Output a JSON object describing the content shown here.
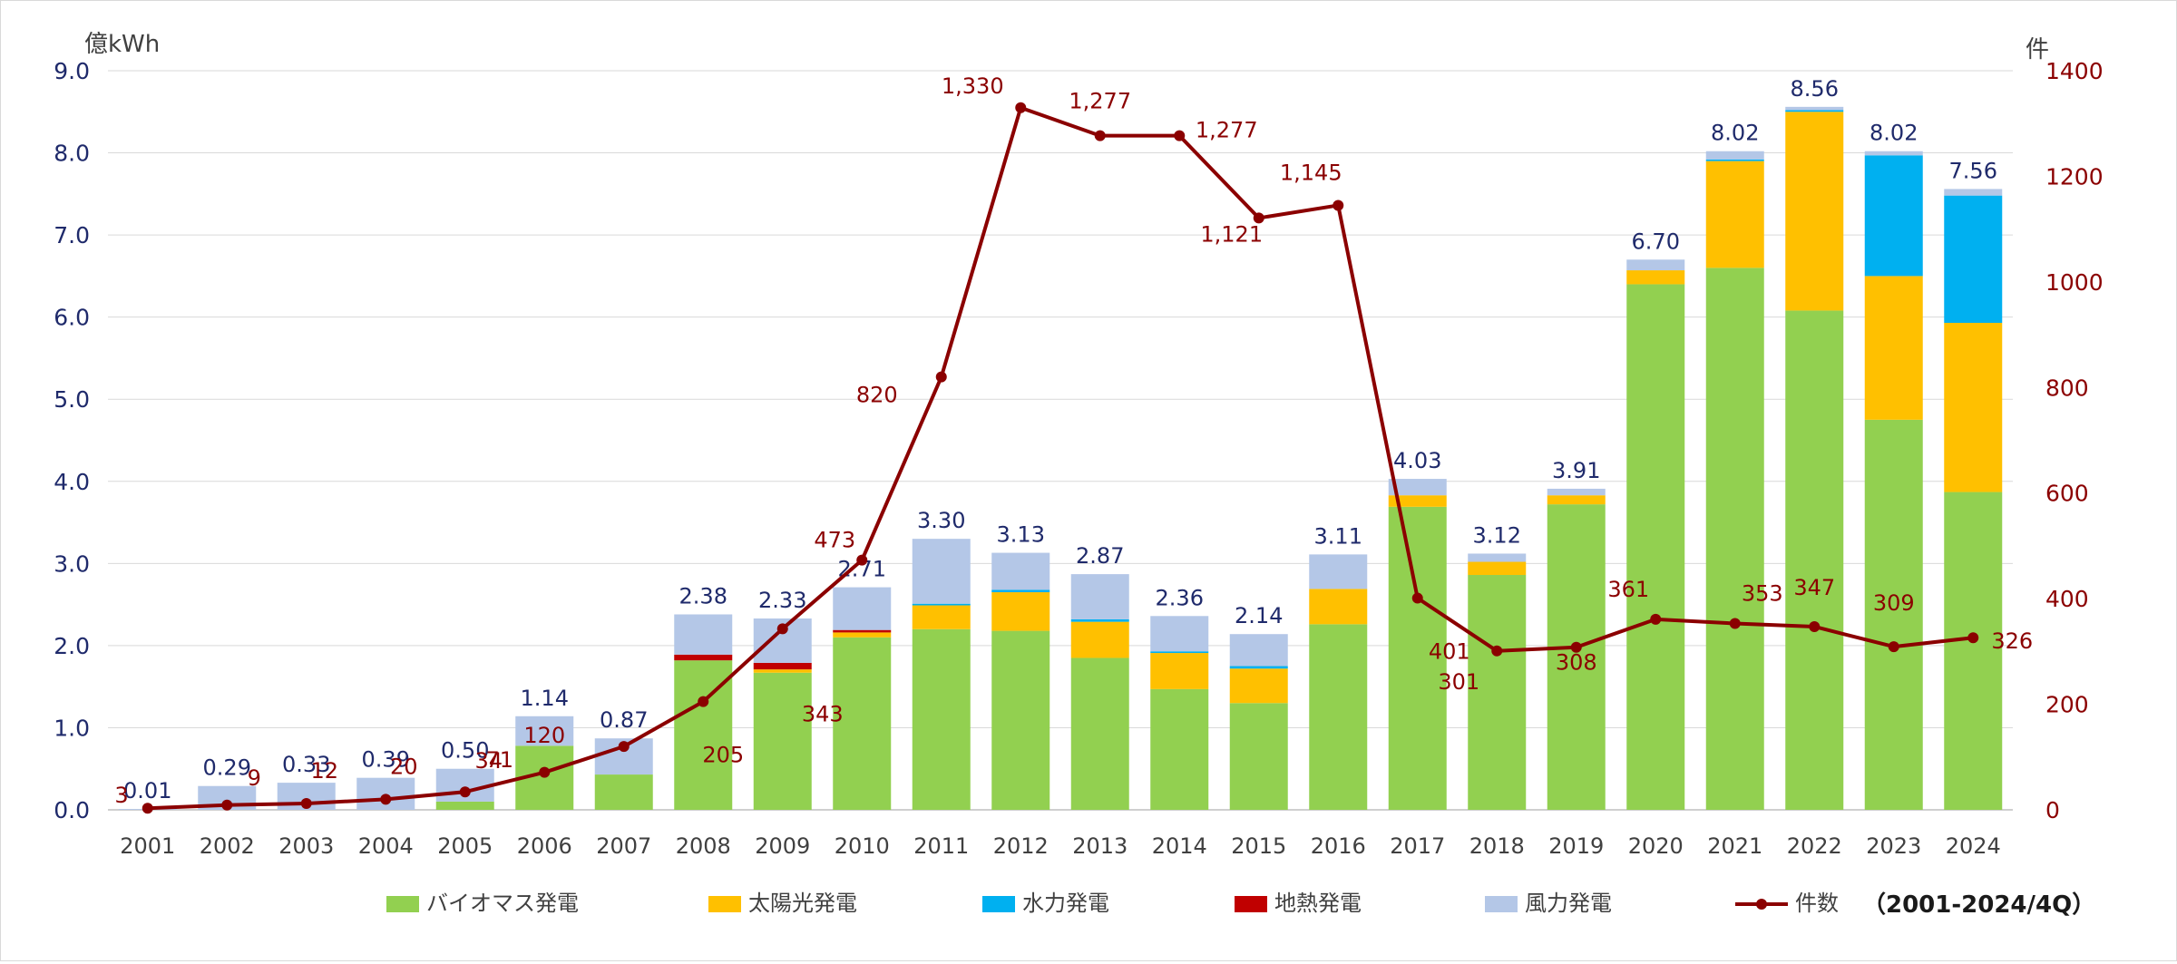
{
  "chart_data": {
    "type": "bar+line",
    "categories": [
      "2001",
      "2002",
      "2003",
      "2004",
      "2005",
      "2006",
      "2007",
      "2008",
      "2009",
      "2010",
      "2011",
      "2012",
      "2013",
      "2014",
      "2015",
      "2016",
      "2017",
      "2018",
      "2019",
      "2020",
      "2021",
      "2022",
      "2023",
      "2024"
    ],
    "y_left": {
      "unit": "億kWh",
      "range": [
        0,
        9
      ],
      "ticks": [
        "0.0",
        "1.0",
        "2.0",
        "3.0",
        "4.0",
        "5.0",
        "6.0",
        "7.0",
        "8.0",
        "9.0"
      ]
    },
    "y_right": {
      "unit": "件",
      "range": [
        0,
        1400
      ],
      "ticks": [
        "0",
        "200",
        "400",
        "600",
        "800",
        "1000",
        "1200",
        "1400"
      ]
    },
    "grid": true,
    "legend_position": "bottom",
    "series": [
      {
        "name": "バイオマス発電",
        "type": "bar",
        "axis": "left",
        "color": "#92d050",
        "values": [
          0,
          0,
          0,
          0,
          0.1,
          0.78,
          0.43,
          1.82,
          1.67,
          2.1,
          2.2,
          2.18,
          1.85,
          1.47,
          1.3,
          2.26,
          3.69,
          2.86,
          3.72,
          6.4,
          6.6,
          6.08,
          4.75,
          3.87
        ]
      },
      {
        "name": "太陽光発電",
        "type": "bar",
        "axis": "left",
        "color": "#ffc000",
        "values": [
          0,
          0,
          0,
          0,
          0,
          0,
          0,
          0,
          0.04,
          0.06,
          0.29,
          0.47,
          0.44,
          0.44,
          0.42,
          0.43,
          0.14,
          0.16,
          0.11,
          0.17,
          1.3,
          2.42,
          1.75,
          2.06
        ]
      },
      {
        "name": "水力発電",
        "type": "bar",
        "axis": "left",
        "color": "#00b0f0",
        "values": [
          0,
          0,
          0,
          0,
          0,
          0,
          0,
          0,
          0,
          0,
          0.02,
          0.03,
          0.03,
          0.02,
          0.03,
          0,
          0,
          0,
          0,
          0,
          0.02,
          0.02,
          1.47,
          1.55
        ]
      },
      {
        "name": "地熱発電",
        "type": "bar",
        "axis": "left",
        "color": "#c00000",
        "values": [
          0,
          0,
          0,
          0,
          0,
          0,
          0,
          0.07,
          0.08,
          0.03,
          0,
          0,
          0,
          0,
          0,
          0,
          0,
          0,
          0,
          0,
          0,
          0,
          0,
          0
        ]
      },
      {
        "name": "風力発電",
        "type": "bar",
        "axis": "left",
        "color": "#b4c7e7",
        "values": [
          0.01,
          0.29,
          0.33,
          0.39,
          0.4,
          0.36,
          0.44,
          0.49,
          0.54,
          0.52,
          0.79,
          0.45,
          0.55,
          0.43,
          0.39,
          0.42,
          0.2,
          0.1,
          0.08,
          0.13,
          0.1,
          0.04,
          0.05,
          0.08
        ]
      },
      {
        "name": "件数",
        "type": "line",
        "axis": "right",
        "color": "#8b0000",
        "values": [
          3,
          9,
          12,
          20,
          34,
          71,
          120,
          205,
          343,
          473,
          820,
          1330,
          1277,
          1277,
          1121,
          1145,
          401,
          301,
          308,
          361,
          353,
          347,
          309,
          326
        ]
      }
    ],
    "bar_total_labels": [
      "0.01",
      "0.29",
      "0.33",
      "0.39",
      "0.50",
      "1.14",
      "0.87",
      "2.38",
      "2.33",
      "2.71",
      "3.30",
      "3.13",
      "2.87",
      "2.36",
      "2.14",
      "3.11",
      "4.03",
      "3.12",
      "3.91",
      "6.70",
      "8.02",
      "8.56",
      "8.02",
      "7.56"
    ],
    "line_labels": [
      "3",
      "9",
      "12",
      "20",
      "34",
      "71",
      "120",
      "205",
      "343",
      "473",
      "820",
      "1,330",
      "1,277",
      "1,277",
      "1,121",
      "1,145",
      "401",
      "301",
      "308",
      "361",
      "353",
      "347",
      "309",
      "326"
    ],
    "annotation": "（2001-2024/4Q）"
  }
}
